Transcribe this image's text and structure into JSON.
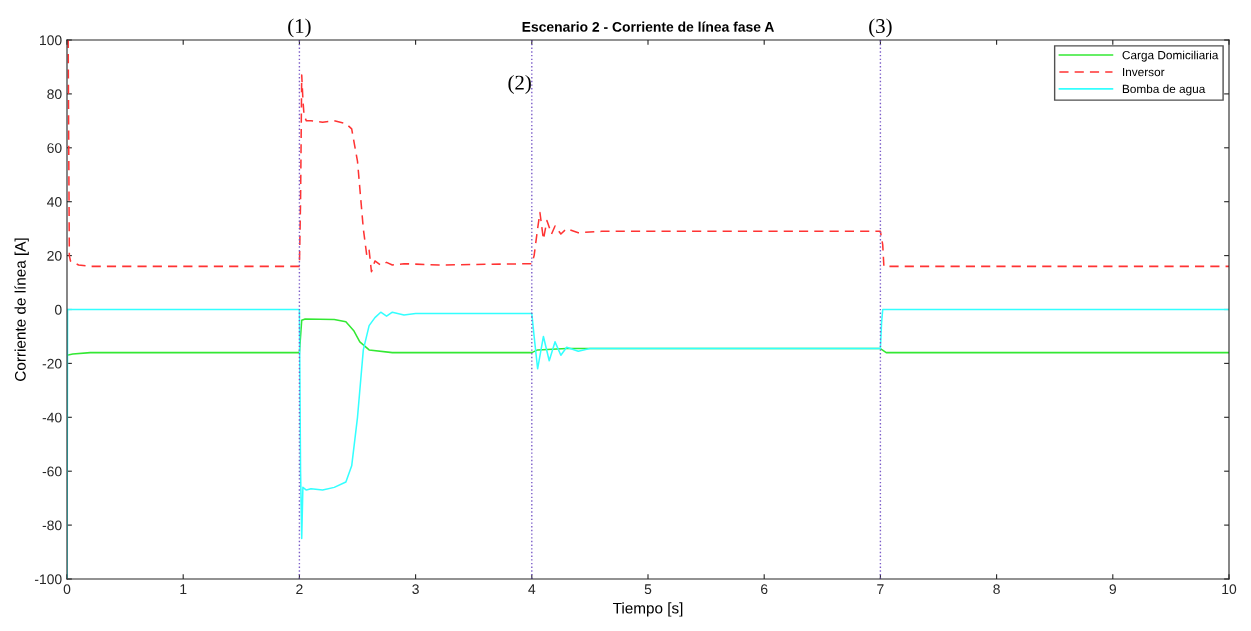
{
  "chart_data": {
    "type": "line",
    "title": "Escenario 2 - Corriente de línea fase A",
    "xlabel": "Tiempo [s]",
    "ylabel": "Corriente de línea [A]",
    "xlim": [
      0,
      10
    ],
    "xticks": [
      0,
      1,
      2,
      3,
      4,
      5,
      6,
      7,
      8,
      9,
      10
    ],
    "ylim": [
      -100,
      100
    ],
    "yticks": [
      -100,
      -80,
      -60,
      -40,
      -20,
      0,
      20,
      40,
      60,
      80,
      100
    ],
    "grid": false,
    "legend": "top right",
    "series": [
      {
        "name": "Carga Domiciliaria",
        "color": "#33e833",
        "line_style": "solid",
        "x": [
          0,
          0.05,
          0.2,
          2.0,
          2.02,
          2.05,
          2.3,
          2.4,
          2.47,
          2.52,
          2.6,
          2.8,
          4.0,
          4.05,
          4.3,
          7.0,
          7.05,
          10
        ],
        "values": [
          -17,
          -16.5,
          -16,
          -16,
          -4,
          -3.5,
          -3.7,
          -4.5,
          -8,
          -12,
          -15,
          -16,
          -16,
          -15,
          -14.5,
          -14.5,
          -16,
          -16
        ]
      },
      {
        "name": "Inversor",
        "color": "#ff3333",
        "line_style": "dashed",
        "x": [
          0,
          0.01,
          0.02,
          0.03,
          0.1,
          0.2,
          2.0,
          2.01,
          2.02,
          2.03,
          2.04,
          2.06,
          2.1,
          2.2,
          2.3,
          2.4,
          2.45,
          2.5,
          2.55,
          2.58,
          2.6,
          2.62,
          2.65,
          2.7,
          2.75,
          2.8,
          2.9,
          3.2,
          4.0,
          4.02,
          4.05,
          4.07,
          4.1,
          4.13,
          4.17,
          4.2,
          4.25,
          4.3,
          4.4,
          4.6,
          7.0,
          7.02,
          7.03,
          10
        ],
        "values": [
          100,
          100,
          20,
          18,
          16.5,
          16,
          16,
          40,
          87,
          78,
          72,
          70,
          70,
          69.5,
          70,
          69,
          67,
          55,
          30,
          20,
          22,
          14,
          18,
          16.5,
          17.5,
          16.5,
          17,
          16.5,
          17,
          20,
          30,
          36,
          26,
          33,
          28,
          31,
          28,
          30,
          28.5,
          29,
          29,
          24,
          16,
          16
        ]
      },
      {
        "name": "Bomba de agua",
        "color": "#33ffff",
        "line_style": "solid",
        "x": [
          0,
          0.005,
          2.0,
          2.01,
          2.02,
          2.03,
          2.06,
          2.1,
          2.2,
          2.3,
          2.4,
          2.45,
          2.5,
          2.55,
          2.6,
          2.65,
          2.7,
          2.75,
          2.8,
          2.9,
          3.0,
          4.0,
          4.02,
          4.05,
          4.1,
          4.15,
          4.2,
          4.25,
          4.3,
          4.4,
          4.5,
          7.0,
          7.01,
          7.02,
          10
        ],
        "values": [
          -100,
          0,
          0,
          -60,
          -85,
          -66,
          -67,
          -66.5,
          -67,
          -66,
          -64,
          -58,
          -40,
          -15,
          -6,
          -3,
          -1,
          -2.5,
          -1,
          -2,
          -1.5,
          -1.5,
          -10,
          -22,
          -10,
          -19,
          -12,
          -17,
          -14,
          -15.5,
          -14.5,
          -14.5,
          -5,
          0,
          0
        ]
      }
    ],
    "ref_lines": [
      {
        "axis": "x",
        "value": 2,
        "color": "#7b5cc8",
        "line_style": "dotted"
      },
      {
        "axis": "x",
        "value": 4,
        "color": "#7b5cc8",
        "line_style": "dotted"
      },
      {
        "axis": "x",
        "value": 7,
        "color": "#7b5cc8",
        "line_style": "dotted"
      }
    ],
    "annotations": [
      "(1)",
      "(2)",
      "(3)"
    ]
  }
}
